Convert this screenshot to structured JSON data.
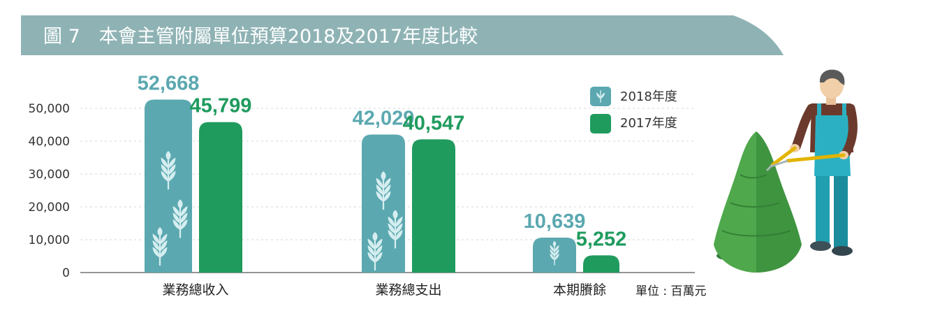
{
  "title": "圖 7　本會主管附屬單位預算2018及2017年度比較",
  "unit": "單位 : 百萬元",
  "colors": {
    "header": "#8fb3b5",
    "series_2018": "#5ba8b0",
    "series_2017": "#1f9b5e",
    "icon": "#d6eef0"
  },
  "legend_icons": [
    "wheat-icon",
    "square-icon"
  ],
  "chart_data": {
    "type": "bar",
    "categories": [
      "業務總收入",
      "業務總支出",
      "本期賸餘"
    ],
    "series": [
      {
        "name": "2018年度",
        "values": [
          52668,
          42029,
          10639
        ],
        "labels": [
          "52,668",
          "42,029",
          "10,639"
        ]
      },
      {
        "name": "2017年度",
        "values": [
          45799,
          40547,
          5252
        ],
        "labels": [
          "45,799",
          "40,547",
          "5,252"
        ]
      }
    ],
    "yticks": [
      "0",
      "10,000",
      "20,000",
      "30,000",
      "40,000",
      "50,000"
    ],
    "ylim": [
      0,
      50000
    ],
    "grid": true,
    "legend_position": "top-right"
  }
}
